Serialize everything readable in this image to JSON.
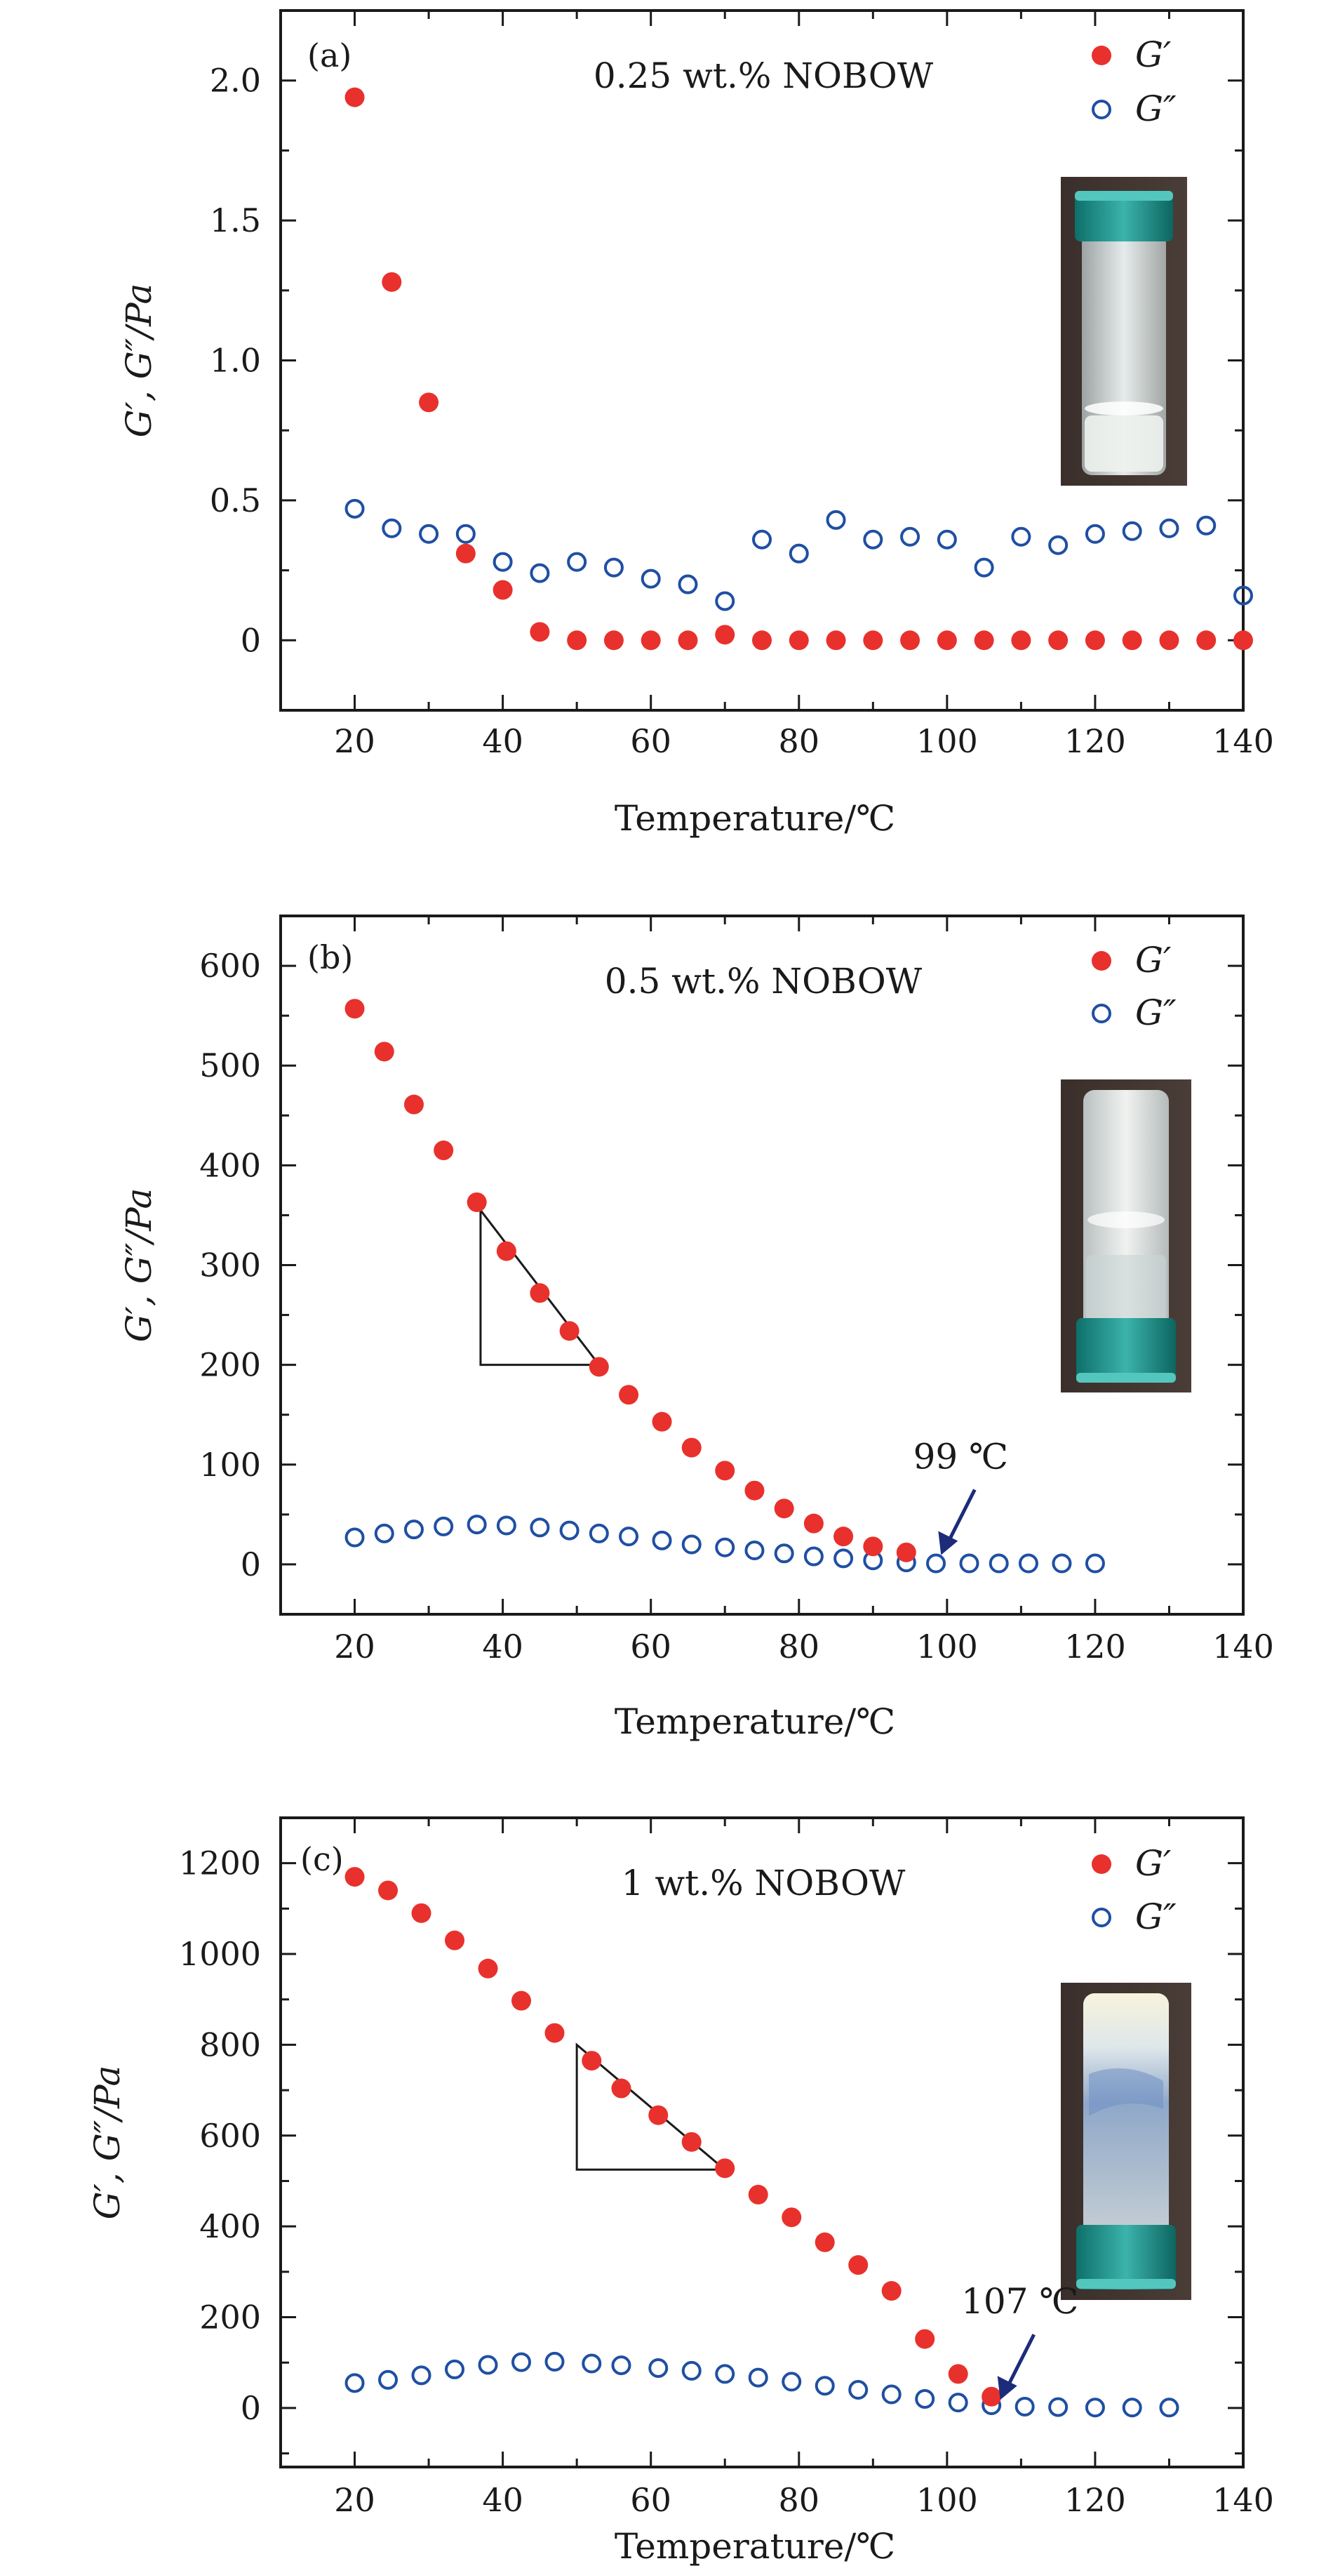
{
  "colors": {
    "g_prime": "#e8312c",
    "g_double_prime": "#1f4fa3",
    "axis": "#1a1a1a",
    "arrow": "#1c2c7a"
  },
  "legend": {
    "g_prime_label": "G′",
    "g_double_prime_label": "G″"
  },
  "chart_data": [
    {
      "type": "scatter",
      "panel_label": "(a)",
      "title": "0.25 wt.% NOBOW",
      "xlabel": "Temperature/℃",
      "ylabel": "G′, G″/Pa",
      "xlim": [
        10,
        140
      ],
      "ylim": [
        -0.25,
        2.25
      ],
      "xticks": [
        20,
        40,
        60,
        80,
        100,
        120,
        140
      ],
      "yticks": [
        0,
        0.5,
        1.0,
        1.5,
        2.0
      ],
      "ytick_labels": [
        "0",
        "0.5",
        "1.0",
        "1.5",
        "2.0"
      ],
      "inset": "vial-a",
      "series": [
        {
          "name": "G′",
          "marker": "filled",
          "x": [
            20,
            25,
            30,
            35,
            40,
            45,
            50,
            55,
            60,
            65,
            70,
            75,
            80,
            85,
            90,
            95,
            100,
            105,
            110,
            115,
            120,
            125,
            130,
            135,
            140
          ],
          "y": [
            1.94,
            1.28,
            0.85,
            0.31,
            0.18,
            0.03,
            0.0,
            0.0,
            0.0,
            0.0,
            0.02,
            0.0,
            0.0,
            0.0,
            0.0,
            0.0,
            0.0,
            0.0,
            0.0,
            0.0,
            0.0,
            0.0,
            0.0,
            0.0,
            0.0
          ]
        },
        {
          "name": "G″",
          "marker": "open",
          "x": [
            20,
            25,
            30,
            35,
            40,
            45,
            50,
            55,
            60,
            65,
            70,
            75,
            80,
            85,
            90,
            95,
            100,
            105,
            110,
            115,
            120,
            125,
            130,
            135,
            140
          ],
          "y": [
            0.47,
            0.4,
            0.38,
            0.38,
            0.28,
            0.24,
            0.28,
            0.26,
            0.22,
            0.2,
            0.14,
            0.36,
            0.31,
            0.43,
            0.36,
            0.37,
            0.36,
            0.26,
            0.37,
            0.34,
            0.38,
            0.39,
            0.4,
            0.41,
            0.16
          ]
        }
      ]
    },
    {
      "type": "scatter",
      "panel_label": "(b)",
      "title": "0.5 wt.% NOBOW",
      "xlabel": "Temperature/℃",
      "ylabel": "G′, G″/Pa",
      "xlim": [
        10,
        140
      ],
      "ylim": [
        -50,
        650
      ],
      "xticks": [
        20,
        40,
        60,
        80,
        100,
        120,
        140
      ],
      "yticks": [
        0,
        100,
        200,
        300,
        400,
        500,
        600
      ],
      "ytick_labels": [
        "0",
        "100",
        "200",
        "300",
        "400",
        "500",
        "600"
      ],
      "inset": "vial-b",
      "annotation": {
        "text": "99 ℃",
        "x": 99,
        "y": 8
      },
      "triangle": [
        [
          37,
          355
        ],
        [
          37,
          200
        ],
        [
          53,
          200
        ]
      ],
      "series": [
        {
          "name": "G′",
          "marker": "filled",
          "x": [
            20,
            24,
            28,
            32,
            36.5,
            40.5,
            45,
            49,
            53,
            57,
            61.5,
            65.5,
            70,
            74,
            78,
            82,
            86,
            90,
            94.5
          ],
          "y": [
            557,
            514,
            461,
            415,
            363,
            314,
            272,
            234,
            198,
            170,
            143,
            117,
            94,
            74,
            56,
            41,
            28,
            18,
            12
          ]
        },
        {
          "name": "G″",
          "marker": "open",
          "x": [
            20,
            24,
            28,
            32,
            36.5,
            40.5,
            45,
            49,
            53,
            57,
            61.5,
            65.5,
            70,
            74,
            78,
            82,
            86,
            90,
            94.5,
            98.5,
            103,
            107,
            111,
            115.5,
            120
          ],
          "y": [
            27,
            31,
            35,
            38,
            40,
            39,
            37,
            34,
            31,
            28,
            24,
            20,
            17,
            14,
            11,
            8,
            6,
            4,
            2,
            1,
            1,
            1,
            1,
            1,
            1
          ]
        }
      ]
    },
    {
      "type": "scatter",
      "panel_label": "(c)",
      "title": "1 wt.% NOBOW",
      "xlabel": "Temperature/℃",
      "ylabel": "G′, G″/Pa",
      "xlim": [
        10,
        140
      ],
      "ylim": [
        -130,
        1300
      ],
      "xticks": [
        20,
        40,
        60,
        80,
        100,
        120,
        140
      ],
      "yticks": [
        0,
        200,
        400,
        600,
        800,
        1000,
        1200
      ],
      "ytick_labels": [
        "0",
        "200",
        "400",
        "600",
        "800",
        "1000",
        "1200"
      ],
      "inset": "vial-c",
      "annotation": {
        "text": "107 ℃",
        "x": 107,
        "y": 15
      },
      "triangle": [
        [
          50,
          800
        ],
        [
          50,
          525
        ],
        [
          70,
          525
        ]
      ],
      "series": [
        {
          "name": "G′",
          "marker": "filled",
          "x": [
            20,
            24.5,
            29,
            33.5,
            38,
            42.5,
            47,
            52,
            56,
            61,
            65.5,
            70,
            74.5,
            79,
            83.5,
            88,
            92.5,
            97,
            101.5,
            106
          ],
          "y": [
            1170,
            1140,
            1090,
            1030,
            968,
            897,
            826,
            765,
            704,
            645,
            586,
            528,
            470,
            420,
            365,
            315,
            258,
            152,
            75,
            25
          ]
        },
        {
          "name": "G″",
          "marker": "open",
          "x": [
            20,
            24.5,
            29,
            33.5,
            38,
            42.5,
            47,
            52,
            56,
            61,
            65.5,
            70,
            74.5,
            79,
            83.5,
            88,
            92.5,
            97,
            101.5,
            106,
            110.5,
            115,
            120,
            125,
            130
          ],
          "y": [
            55,
            62,
            72,
            85,
            95,
            101,
            102,
            98,
            94,
            88,
            82,
            75,
            67,
            58,
            49,
            40,
            30,
            20,
            12,
            6,
            3,
            2,
            1,
            1,
            1
          ]
        }
      ]
    }
  ]
}
